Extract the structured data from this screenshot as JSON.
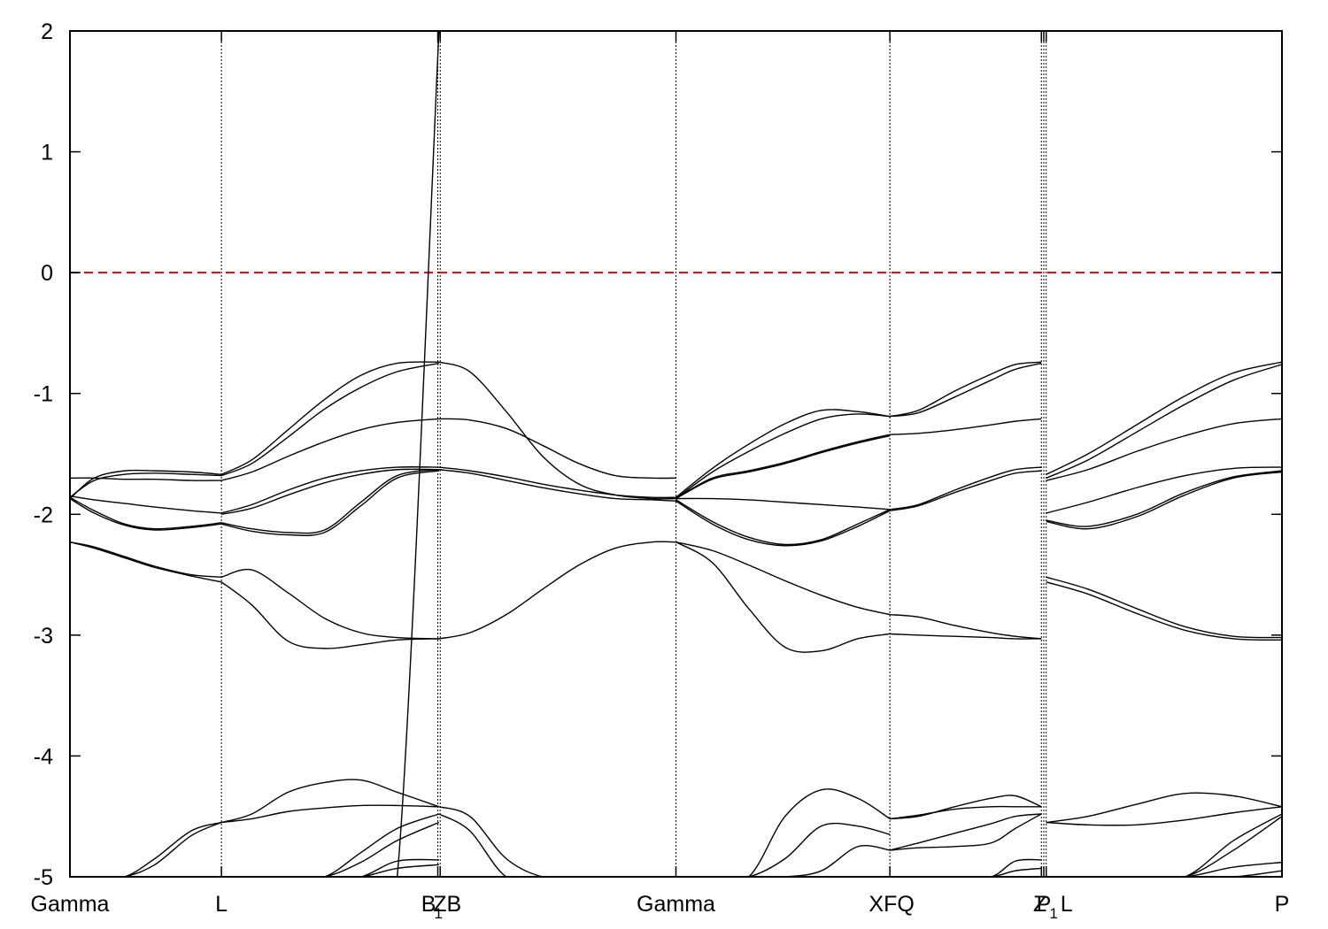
{
  "chart_data": {
    "type": "line",
    "title": "",
    "xlabel": "",
    "ylabel": "",
    "ylim": [
      -5,
      2
    ],
    "y_ticks": [
      "2",
      "1",
      "0",
      "-1",
      "-2",
      "-3",
      "-4",
      "-5"
    ],
    "y_tick_values": [
      2,
      1,
      0,
      -1,
      -2,
      -3,
      -4,
      -5
    ],
    "x_range": [
      0,
      1.0
    ],
    "kpoints": [
      {
        "x": 0.0,
        "label": "Gamma",
        "sub": ""
      },
      {
        "x": 0.125,
        "label": "L",
        "sub": ""
      },
      {
        "x": 0.3035,
        "label": "B",
        "sub": "1"
      },
      {
        "x": 0.3055,
        "label": "ZB",
        "sub": ""
      },
      {
        "x": 0.5,
        "label": "Gamma",
        "sub": ""
      },
      {
        "x": 0.6765,
        "label": "XFQ",
        "sub": ""
      },
      {
        "x": 0.8015,
        "label": "Z",
        "sub": ""
      },
      {
        "x": 0.8035,
        "label": "P",
        "sub": "1"
      },
      {
        "x": 0.8055,
        "label": "L",
        "sub": ""
      },
      {
        "x": 1.0,
        "label": "P",
        "sub": ""
      }
    ],
    "fermi_level": 0,
    "fermi_color": "#e00000",
    "band_color": "#000000",
    "grid": false,
    "legend": "none",
    "segments": [
      {
        "x": [
          0.0,
          0.02,
          0.045,
          0.07,
          0.1,
          0.125
        ],
        "bands": [
          [
            -1.87,
            -1.7,
            -1.64,
            -1.64,
            -1.65,
            -1.67
          ],
          [
            -1.86,
            -1.72,
            -1.67,
            -1.66,
            -1.67,
            -1.68
          ],
          [
            -1.7,
            -1.7,
            -1.71,
            -1.71,
            -1.72,
            -1.72
          ],
          [
            -1.85,
            -1.88,
            -1.91,
            -1.94,
            -1.97,
            -1.99
          ],
          [
            -1.86,
            -1.97,
            -2.08,
            -2.12,
            -2.1,
            -2.07
          ],
          [
            -1.87,
            -1.99,
            -2.09,
            -2.13,
            -2.11,
            -2.08
          ],
          [
            -2.23,
            -2.27,
            -2.35,
            -2.43,
            -2.5,
            -2.52
          ],
          [
            -2.23,
            -2.28,
            -2.36,
            -2.44,
            -2.51,
            -2.56
          ],
          [
            -5.0,
            -5.0,
            -5.0,
            -4.85,
            -4.62,
            -4.55
          ],
          [
            -5.0,
            -5.0,
            -5.0,
            -4.9,
            -4.66,
            -4.55
          ]
        ]
      },
      {
        "x": [
          0.125,
          0.15,
          0.18,
          0.21,
          0.24,
          0.27,
          0.3045
        ],
        "bands": [
          [
            -1.67,
            -1.55,
            -1.3,
            -1.05,
            -0.85,
            -0.75,
            -0.74
          ],
          [
            -1.68,
            -1.58,
            -1.36,
            -1.13,
            -0.95,
            -0.82,
            -0.75
          ],
          [
            -1.72,
            -1.65,
            -1.52,
            -1.4,
            -1.3,
            -1.24,
            -1.21
          ],
          [
            -1.99,
            -1.92,
            -1.8,
            -1.7,
            -1.64,
            -1.61,
            -1.61
          ],
          [
            -2.0,
            -1.95,
            -1.84,
            -1.74,
            -1.67,
            -1.63,
            -1.63
          ],
          [
            -2.07,
            -2.12,
            -2.15,
            -2.13,
            -1.9,
            -1.68,
            -1.63
          ],
          [
            -2.08,
            -2.14,
            -2.17,
            -2.15,
            -1.93,
            -1.7,
            -1.64
          ],
          [
            -2.52,
            -2.46,
            -2.65,
            -2.86,
            -2.98,
            -3.02,
            -3.03
          ],
          [
            -2.56,
            -2.75,
            -3.05,
            -3.11,
            -3.08,
            -3.04,
            -3.03
          ],
          [
            -4.55,
            -4.48,
            -4.3,
            -4.22,
            -4.2,
            -4.3,
            -4.42
          ],
          [
            -4.55,
            -4.52,
            -4.46,
            -4.43,
            -4.41,
            -4.41,
            -4.42
          ],
          [
            -5.0,
            -5.0,
            -5.0,
            -5.0,
            -4.8,
            -4.6,
            -4.48
          ],
          [
            -5.0,
            -5.0,
            -5.0,
            -5.0,
            -4.88,
            -4.7,
            -4.55
          ],
          [
            -5.0,
            -5.0,
            -5.0,
            -5.0,
            -5.0,
            -4.87,
            -4.86
          ],
          [
            -5.0,
            -5.0,
            -5.0,
            -5.0,
            -5.0,
            -4.93,
            -4.9
          ],
          [
            -5.0,
            -5.0,
            -5.0,
            -5.0,
            -5.0,
            -5.0,
            2.0
          ]
        ]
      },
      {
        "x": [
          0.3045,
          0.33,
          0.36,
          0.39,
          0.42,
          0.45,
          0.48,
          0.5
        ],
        "bands": [
          [
            -0.74,
            -0.82,
            -1.15,
            -1.52,
            -1.75,
            -1.84,
            -1.87,
            -1.87
          ],
          [
            -1.21,
            -1.22,
            -1.29,
            -1.43,
            -1.58,
            -1.68,
            -1.7,
            -1.7
          ],
          [
            -1.61,
            -1.64,
            -1.69,
            -1.75,
            -1.8,
            -1.84,
            -1.86,
            -1.86
          ],
          [
            -1.63,
            -1.66,
            -1.72,
            -1.78,
            -1.83,
            -1.87,
            -1.88,
            -1.89
          ],
          [
            -3.03,
            -2.98,
            -2.83,
            -2.62,
            -2.42,
            -2.28,
            -2.23,
            -2.23
          ],
          [
            -4.42,
            -4.5,
            -4.85,
            -5.0,
            -5.0,
            -5.0,
            -5.0,
            -5.0
          ],
          [
            -4.48,
            -4.62,
            -5.0,
            -5.0,
            -5.0,
            -5.0,
            -5.0,
            -5.0
          ]
        ]
      },
      {
        "x": [
          0.5,
          0.53,
          0.56,
          0.59,
          0.62,
          0.65,
          0.6765
        ],
        "bands": [
          [
            -1.86,
            -1.62,
            -1.42,
            -1.25,
            -1.14,
            -1.15,
            -1.19
          ],
          [
            -1.87,
            -1.65,
            -1.48,
            -1.33,
            -1.21,
            -1.17,
            -1.19
          ],
          [
            -1.87,
            -1.7,
            -1.64,
            -1.57,
            -1.48,
            -1.4,
            -1.34
          ],
          [
            -1.87,
            -1.71,
            -1.65,
            -1.58,
            -1.49,
            -1.41,
            -1.35
          ],
          [
            -1.87,
            -1.87,
            -1.88,
            -1.9,
            -1.92,
            -1.94,
            -1.96
          ],
          [
            -1.88,
            -2.06,
            -2.19,
            -2.25,
            -2.21,
            -2.08,
            -1.96
          ],
          [
            -1.89,
            -2.08,
            -2.21,
            -2.26,
            -2.22,
            -2.1,
            -1.97
          ],
          [
            -2.23,
            -2.3,
            -2.42,
            -2.55,
            -2.67,
            -2.77,
            -2.83
          ],
          [
            -2.23,
            -2.4,
            -2.78,
            -3.1,
            -3.13,
            -3.03,
            -2.99
          ],
          [
            -5.0,
            -5.0,
            -5.0,
            -4.5,
            -4.28,
            -4.35,
            -4.52
          ],
          [
            -5.0,
            -5.0,
            -5.0,
            -4.85,
            -4.58,
            -4.58,
            -4.65
          ],
          [
            -5.0,
            -5.0,
            -5.0,
            -5.0,
            -4.95,
            -4.75,
            -4.78
          ]
        ]
      },
      {
        "x": [
          0.6765,
          0.7,
          0.73,
          0.76,
          0.78,
          0.8015
        ],
        "bands": [
          [
            -1.19,
            -1.14,
            -0.98,
            -0.84,
            -0.76,
            -0.74
          ],
          [
            -1.19,
            -1.16,
            -1.03,
            -0.89,
            -0.8,
            -0.75
          ],
          [
            -1.34,
            -1.33,
            -1.3,
            -1.26,
            -1.23,
            -1.21
          ],
          [
            -1.96,
            -1.92,
            -1.8,
            -1.69,
            -1.63,
            -1.61
          ],
          [
            -1.97,
            -1.93,
            -1.82,
            -1.72,
            -1.66,
            -1.64
          ],
          [
            -2.83,
            -2.85,
            -2.92,
            -2.98,
            -3.01,
            -3.03
          ],
          [
            -2.99,
            -3.0,
            -3.01,
            -3.02,
            -3.03,
            -3.03
          ],
          [
            -4.52,
            -4.5,
            -4.42,
            -4.35,
            -4.33,
            -4.42
          ],
          [
            -4.52,
            -4.49,
            -4.44,
            -4.42,
            -4.42,
            -4.42
          ],
          [
            -4.78,
            -4.72,
            -4.64,
            -4.56,
            -4.5,
            -4.48
          ],
          [
            -4.78,
            -4.76,
            -4.75,
            -4.72,
            -4.6,
            -4.48
          ],
          [
            -5.0,
            -5.0,
            -5.0,
            -5.0,
            -4.87,
            -4.86
          ],
          [
            -5.0,
            -5.0,
            -5.0,
            -5.0,
            -4.95,
            -4.93
          ]
        ]
      },
      {
        "x": [
          0.8055,
          0.84,
          0.88,
          0.92,
          0.96,
          1.0
        ],
        "bands": [
          [
            -1.67,
            -1.5,
            -1.26,
            -1.02,
            -0.83,
            -0.74
          ],
          [
            -1.7,
            -1.55,
            -1.32,
            -1.09,
            -0.89,
            -0.76
          ],
          [
            -1.72,
            -1.63,
            -1.48,
            -1.35,
            -1.25,
            -1.21
          ],
          [
            -1.99,
            -1.9,
            -1.78,
            -1.68,
            -1.62,
            -1.61
          ],
          [
            -2.05,
            -2.1,
            -2.0,
            -1.82,
            -1.69,
            -1.64
          ],
          [
            -2.06,
            -2.12,
            -2.02,
            -1.84,
            -1.7,
            -1.65
          ],
          [
            -2.52,
            -2.62,
            -2.78,
            -2.93,
            -3.01,
            -3.02
          ],
          [
            -2.56,
            -2.66,
            -2.82,
            -2.96,
            -3.03,
            -3.04
          ],
          [
            -4.55,
            -4.5,
            -4.4,
            -4.31,
            -4.33,
            -4.42
          ],
          [
            -4.55,
            -4.57,
            -4.57,
            -4.53,
            -4.47,
            -4.42
          ],
          [
            -5.0,
            -5.0,
            -5.0,
            -5.0,
            -4.7,
            -4.48
          ],
          [
            -5.0,
            -5.0,
            -5.0,
            -5.0,
            -4.78,
            -4.5
          ],
          [
            -5.0,
            -5.0,
            -5.0,
            -5.0,
            -4.92,
            -4.88
          ],
          [
            -5.0,
            -5.0,
            -5.0,
            -5.0,
            -5.0,
            -4.95
          ]
        ]
      }
    ]
  }
}
